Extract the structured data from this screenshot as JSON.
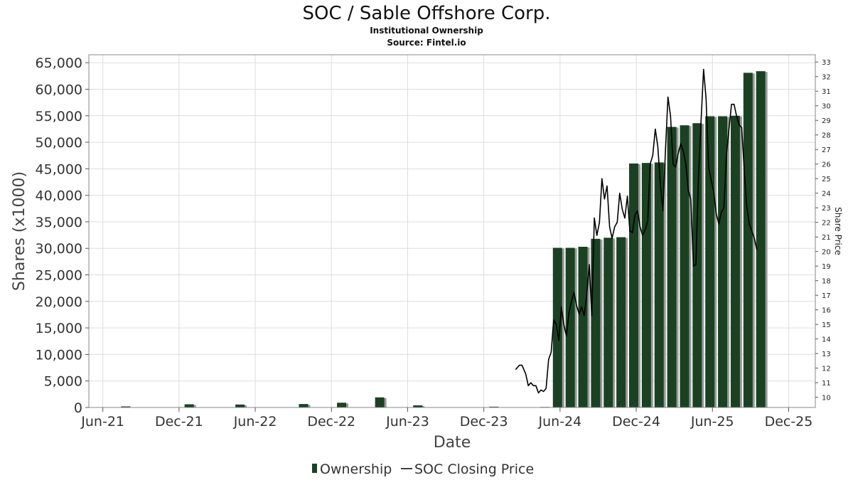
{
  "chart_data": {
    "type": "bar",
    "title": "SOC / Sable Offshore Corp.",
    "subtitles": [
      "Institutional Ownership",
      "Source: Fintel.io"
    ],
    "xlabel": "Date",
    "ylabel": "Shares (x1000)",
    "y2label": "Share Price",
    "ylim": [
      0,
      66500
    ],
    "y2lim": [
      9.3,
      33.5
    ],
    "y_ticks": [
      0,
      5000,
      10000,
      15000,
      20000,
      25000,
      30000,
      35000,
      40000,
      45000,
      50000,
      55000,
      60000,
      65000
    ],
    "y_tick_labels": [
      "0",
      "5,000",
      "10,000",
      "15,000",
      "20,000",
      "25,000",
      "30,000",
      "35,000",
      "40,000",
      "45,000",
      "50,000",
      "55,000",
      "60,000",
      "65,000"
    ],
    "y2_ticks": [
      10,
      11,
      12,
      13,
      14,
      15,
      16,
      17,
      18,
      19,
      20,
      21,
      22,
      23,
      24,
      25,
      26,
      27,
      28,
      29,
      30,
      31,
      32,
      33
    ],
    "x_ticks": [
      {
        "label": "Jun-21",
        "t": 0
      },
      {
        "label": "Dec-21",
        "t": 6
      },
      {
        "label": "Jun-22",
        "t": 12
      },
      {
        "label": "Dec-22",
        "t": 18
      },
      {
        "label": "Jun-23",
        "t": 24
      },
      {
        "label": "Dec-23",
        "t": 30
      },
      {
        "label": "Jun-24",
        "t": 36
      },
      {
        "label": "Dec-24",
        "t": 42
      },
      {
        "label": "Jun-25",
        "t": 48
      },
      {
        "label": "Dec-25",
        "t": 54
      }
    ],
    "xlim": [
      -1.1,
      56.1
    ],
    "series": [
      {
        "name": "Ownership",
        "type": "bar",
        "color": "#1a4222",
        "shadow": "#9a9a9a",
        "points": [
          {
            "t": 1.8,
            "v": 200
          },
          {
            "t": 6.8,
            "v": 600
          },
          {
            "t": 10.8,
            "v": 550
          },
          {
            "t": 15.8,
            "v": 650
          },
          {
            "t": 18.8,
            "v": 900
          },
          {
            "t": 21.8,
            "v": 1900
          },
          {
            "t": 24.8,
            "v": 400
          },
          {
            "t": 30.8,
            "v": 150
          },
          {
            "t": 34.8,
            "v": 100
          },
          {
            "t": 35.8,
            "v": 30100
          },
          {
            "t": 36.8,
            "v": 30100
          },
          {
            "t": 37.8,
            "v": 30300
          },
          {
            "t": 38.8,
            "v": 31800
          },
          {
            "t": 39.8,
            "v": 32000
          },
          {
            "t": 40.8,
            "v": 32100
          },
          {
            "t": 41.8,
            "v": 46000
          },
          {
            "t": 42.8,
            "v": 46100
          },
          {
            "t": 43.8,
            "v": 46200
          },
          {
            "t": 44.8,
            "v": 52900
          },
          {
            "t": 45.8,
            "v": 53200
          },
          {
            "t": 46.8,
            "v": 53600
          },
          {
            "t": 47.8,
            "v": 54900
          },
          {
            "t": 48.8,
            "v": 54900
          },
          {
            "t": 49.8,
            "v": 55000
          },
          {
            "t": 50.8,
            "v": 63100
          },
          {
            "t": 51.8,
            "v": 63400
          }
        ]
      },
      {
        "name": "SOC Closing Price",
        "type": "line",
        "axis": "right",
        "color": "#000000",
        "points": [
          [
            32.5,
            11.9
          ],
          [
            32.8,
            12.2
          ],
          [
            33.0,
            12.2
          ],
          [
            33.3,
            11.6
          ],
          [
            33.5,
            10.8
          ],
          [
            33.7,
            11.0
          ],
          [
            33.9,
            10.8
          ],
          [
            34.1,
            10.8
          ],
          [
            34.3,
            10.3
          ],
          [
            34.5,
            10.5
          ],
          [
            34.7,
            10.4
          ],
          [
            34.9,
            10.6
          ],
          [
            35.1,
            12.6
          ],
          [
            35.3,
            13.1
          ],
          [
            35.5,
            15.3
          ],
          [
            35.7,
            15.0
          ],
          [
            35.9,
            13.9
          ],
          [
            36.1,
            16.2
          ],
          [
            36.3,
            15.0
          ],
          [
            36.5,
            14.2
          ],
          [
            36.7,
            15.8
          ],
          [
            36.9,
            16.6
          ],
          [
            37.1,
            17.2
          ],
          [
            37.3,
            16.3
          ],
          [
            37.5,
            15.7
          ],
          [
            37.7,
            16.2
          ],
          [
            37.9,
            15.6
          ],
          [
            38.1,
            17.0
          ],
          [
            38.3,
            19.1
          ],
          [
            38.5,
            15.6
          ],
          [
            38.7,
            22.3
          ],
          [
            38.9,
            21.1
          ],
          [
            39.1,
            22.0
          ],
          [
            39.3,
            25.0
          ],
          [
            39.5,
            23.6
          ],
          [
            39.7,
            24.5
          ],
          [
            39.9,
            21.7
          ],
          [
            40.1,
            20.9
          ],
          [
            40.3,
            21.7
          ],
          [
            40.5,
            22.0
          ],
          [
            40.7,
            24.0
          ],
          [
            40.9,
            22.9
          ],
          [
            41.1,
            22.3
          ],
          [
            41.3,
            23.8
          ],
          [
            41.5,
            21.4
          ],
          [
            41.7,
            21.3
          ],
          [
            41.9,
            22.5
          ],
          [
            42.1,
            22.8
          ],
          [
            42.3,
            21.7
          ],
          [
            42.5,
            21.1
          ],
          [
            42.7,
            21.5
          ],
          [
            42.9,
            22.1
          ],
          [
            43.1,
            26.0
          ],
          [
            43.3,
            26.6
          ],
          [
            43.5,
            28.4
          ],
          [
            43.7,
            27.2
          ],
          [
            43.9,
            24.6
          ],
          [
            44.1,
            22.8
          ],
          [
            44.3,
            27.0
          ],
          [
            44.5,
            30.6
          ],
          [
            44.7,
            29.3
          ],
          [
            44.9,
            26.0
          ],
          [
            45.1,
            25.8
          ],
          [
            45.3,
            26.7
          ],
          [
            45.5,
            27.4
          ],
          [
            45.7,
            26.9
          ],
          [
            45.9,
            26.0
          ],
          [
            46.1,
            24.2
          ],
          [
            46.3,
            23.6
          ],
          [
            46.5,
            19.0
          ],
          [
            46.7,
            19.1
          ],
          [
            46.9,
            25.1
          ],
          [
            47.1,
            28.9
          ],
          [
            47.3,
            32.5
          ],
          [
            47.5,
            30.5
          ],
          [
            47.7,
            25.8
          ],
          [
            47.9,
            24.9
          ],
          [
            48.1,
            24.1
          ],
          [
            48.3,
            22.6
          ],
          [
            48.5,
            21.9
          ],
          [
            48.7,
            22.7
          ],
          [
            48.9,
            23.0
          ],
          [
            49.1,
            26.6
          ],
          [
            49.3,
            28.4
          ],
          [
            49.5,
            30.1
          ],
          [
            49.7,
            30.1
          ],
          [
            49.9,
            29.3
          ],
          [
            50.1,
            28.7
          ],
          [
            50.3,
            28.5
          ],
          [
            50.5,
            25.7
          ],
          [
            50.7,
            23.1
          ],
          [
            50.9,
            21.9
          ],
          [
            51.1,
            21.4
          ],
          [
            51.3,
            20.9
          ],
          [
            51.5,
            20.1
          ]
        ]
      }
    ],
    "legend": {
      "position": "bottom-center",
      "items": [
        "Ownership",
        "SOC Closing Price"
      ]
    },
    "grid": true
  }
}
